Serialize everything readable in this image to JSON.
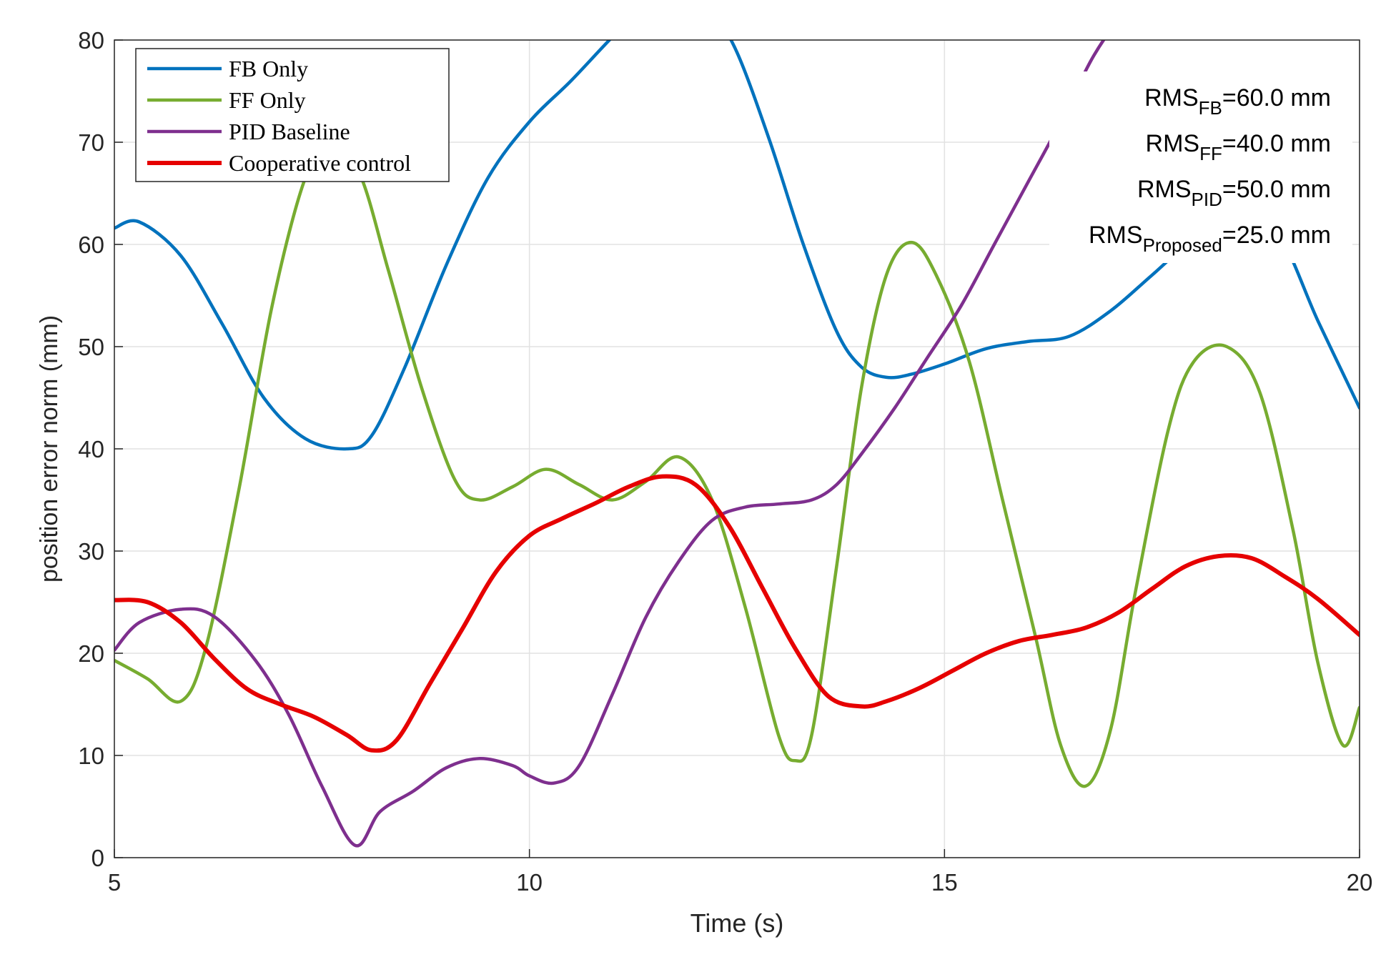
{
  "chart_data": {
    "type": "line",
    "xlabel": "Time (s)",
    "ylabel": "position error norm (mm)",
    "xlim": [
      5,
      20
    ],
    "ylim": [
      0,
      80
    ],
    "xticks": [
      5,
      10,
      15,
      20
    ],
    "yticks": [
      0,
      10,
      20,
      30,
      40,
      50,
      60,
      70,
      80
    ],
    "grid": true,
    "legend_position": "top-left",
    "series": [
      {
        "name": "FB Only",
        "color": "#0072BD",
        "x": [
          5.0,
          5.3,
          5.8,
          6.3,
          6.8,
          7.3,
          7.8,
          8.1,
          8.5,
          9.0,
          9.5,
          10.0,
          10.5,
          11.0,
          11.3,
          11.6,
          11.9,
          12.2,
          12.5,
          12.9,
          13.3,
          13.7,
          14.0,
          14.3,
          14.6,
          15.0,
          15.5,
          16.0,
          16.5,
          17.0,
          17.5,
          18.0,
          18.5,
          19.0,
          19.5,
          20.0
        ],
        "y": [
          61.6,
          62.2,
          58.9,
          52.2,
          45.0,
          41.0,
          40.0,
          41.3,
          48.0,
          58.0,
          66.5,
          72.0,
          76.0,
          80.3,
          82.5,
          83.6,
          83.8,
          82.6,
          78.8,
          70.0,
          60.0,
          51.5,
          48.0,
          47.0,
          47.3,
          48.3,
          49.8,
          50.5,
          51.0,
          53.5,
          57.0,
          60.5,
          62.5,
          61.3,
          52.5,
          44.0
        ]
      },
      {
        "name": "FF Only",
        "color": "#77AC30",
        "x": [
          5.0,
          5.4,
          5.8,
          6.1,
          6.5,
          6.9,
          7.3,
          7.6,
          7.95,
          8.3,
          8.7,
          9.1,
          9.4,
          9.8,
          10.2,
          10.6,
          11.0,
          11.4,
          11.8,
          12.2,
          12.6,
          13.0,
          13.2,
          13.4,
          13.7,
          14.0,
          14.3,
          14.6,
          14.9,
          15.3,
          15.7,
          16.1,
          16.4,
          16.7,
          17.0,
          17.3,
          17.7,
          18.0,
          18.4,
          18.8,
          19.2,
          19.5,
          19.8,
          20.0
        ],
        "y": [
          19.3,
          17.5,
          15.3,
          20.5,
          36.0,
          54.0,
          66.5,
          69.5,
          67.0,
          57.5,
          46.0,
          37.0,
          35.0,
          36.3,
          38.0,
          36.5,
          35.0,
          36.8,
          39.2,
          35.0,
          24.5,
          12.0,
          9.5,
          12.0,
          28.5,
          46.0,
          57.0,
          60.2,
          57.0,
          48.5,
          35.0,
          21.5,
          11.0,
          7.0,
          12.5,
          26.0,
          42.0,
          48.5,
          50.0,
          45.5,
          32.0,
          19.0,
          11.0,
          14.7
        ]
      },
      {
        "name": "PID Baseline",
        "color": "#7E2F8E",
        "x": [
          5.0,
          5.3,
          5.8,
          6.2,
          6.7,
          7.1,
          7.5,
          7.9,
          8.2,
          8.6,
          9.0,
          9.4,
          9.8,
          10.0,
          10.3,
          10.6,
          11.0,
          11.4,
          11.8,
          12.2,
          12.6,
          13.0,
          13.4,
          13.7,
          14.0,
          14.4,
          14.8,
          15.2,
          15.6,
          16.0,
          16.4,
          16.8,
          17.2,
          17.5
        ],
        "y": [
          20.3,
          23.0,
          24.3,
          23.6,
          19.3,
          14.0,
          7.0,
          1.2,
          4.5,
          6.5,
          8.8,
          9.7,
          9.0,
          8.0,
          7.3,
          9.0,
          16.0,
          23.5,
          29.0,
          33.0,
          34.3,
          34.6,
          35.0,
          36.5,
          39.5,
          44.0,
          49.0,
          54.0,
          60.0,
          66.0,
          72.0,
          78.5,
          83.0,
          85.0
        ]
      },
      {
        "name": "Cooperative control",
        "color": "#E60000",
        "x": [
          5.0,
          5.4,
          5.8,
          6.2,
          6.6,
          7.0,
          7.4,
          7.8,
          8.1,
          8.4,
          8.8,
          9.2,
          9.6,
          10.0,
          10.4,
          10.8,
          11.2,
          11.6,
          12.0,
          12.4,
          12.8,
          13.2,
          13.6,
          14.0,
          14.3,
          14.7,
          15.1,
          15.5,
          15.9,
          16.3,
          16.7,
          17.1,
          17.5,
          17.9,
          18.3,
          18.7,
          19.1,
          19.5,
          20.0
        ],
        "y": [
          25.2,
          25.0,
          23.0,
          19.5,
          16.5,
          15.0,
          13.8,
          12.0,
          10.5,
          11.5,
          17.0,
          22.5,
          28.0,
          31.5,
          33.2,
          34.7,
          36.3,
          37.3,
          36.5,
          32.5,
          26.5,
          20.5,
          15.8,
          14.8,
          15.3,
          16.6,
          18.3,
          20.0,
          21.2,
          21.8,
          22.5,
          24.0,
          26.3,
          28.5,
          29.5,
          29.3,
          27.5,
          25.3,
          21.8
        ]
      }
    ],
    "annotations": [
      {
        "base": "RMS",
        "sub": "FB",
        "value": "=60.0 mm"
      },
      {
        "base": "RMS",
        "sub": "FF",
        "value": "=40.0 mm"
      },
      {
        "base": "RMS",
        "sub": "PID",
        "value": "=50.0 mm"
      },
      {
        "base": "RMS",
        "sub": "Proposed",
        "value": "=25.0 mm"
      }
    ]
  }
}
